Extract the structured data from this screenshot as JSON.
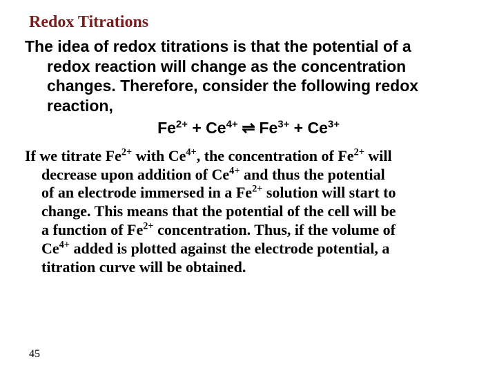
{
  "colors": {
    "title": "#7a1d1d",
    "body_text": "#000000",
    "background": "#ffffff"
  },
  "typography": {
    "title_font": "Times New Roman",
    "title_size_pt": 18,
    "title_weight": "bold",
    "para1_font": "Arial",
    "para1_size_pt": 17,
    "para1_weight": "bold",
    "para2_font": "Times New Roman",
    "para2_size_pt": 16,
    "para2_weight": "bold",
    "footer_size_pt": 12
  },
  "title": "Redox Titrations",
  "para1_line1": "The idea of redox titrations is that the potential of a",
  "para1_line2": "redox reaction will change as the concentration",
  "para1_line3": "changes. Therefore, consider the following redox",
  "para1_line4": "reaction,",
  "equation": {
    "lhs1_base": "Fe",
    "lhs1_sup": "2+",
    "plus": " + ",
    "lhs2_base": "Ce",
    "lhs2_sup": "4+",
    "arrow": " ⇌ ",
    "rhs1_base": "Fe",
    "rhs1_sup": "3+",
    "rhs2_base": "Ce",
    "rhs2_sup": "3+"
  },
  "p2": {
    "t1": "If we titrate Fe",
    "s1": "2+",
    "t2": " with Ce",
    "s2": "4+",
    "t3": ", the concentration of Fe",
    "s3": "2+",
    "t4": " will",
    "t5": "decrease upon addition of Ce",
    "s4": "4+",
    "t6": " and thus the potential",
    "t7": "of an electrode immersed in a Fe",
    "s5": "2+",
    "t8": " solution will start to",
    "t9": "change. This means that the potential of the cell will be",
    "t10": "a function of Fe",
    "s6": "2+",
    "t11": " concentration. Thus, if the volume of",
    "t12": "Ce",
    "s7": "4+",
    "t13": " added is plotted against the electrode potential, a",
    "t14": "titration curve will be obtained."
  },
  "footer": "45"
}
